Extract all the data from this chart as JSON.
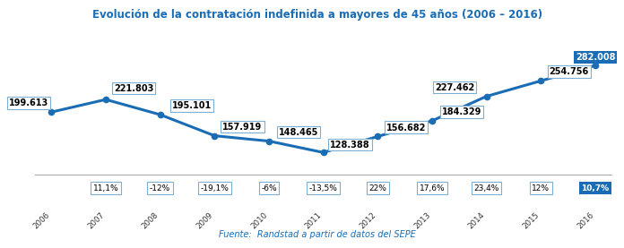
{
  "title": "Evolución de la contratación indefinida a mayores de 45 años (2006 – 2016)",
  "years": [
    2006,
    2007,
    2008,
    2009,
    2010,
    2011,
    2012,
    2013,
    2014,
    2015,
    2016
  ],
  "values": [
    199613,
    221803,
    195101,
    157919,
    148465,
    128388,
    156682,
    184329,
    227462,
    254756,
    282008
  ],
  "labels": [
    "199.613",
    "221.803",
    "195.101",
    "157.919",
    "148.465",
    "128.388",
    "156.682",
    "184.329",
    "227.462",
    "254.756",
    "282.008"
  ],
  "pct_labels": [
    "11,1%",
    "-12%",
    "-19,1%",
    "-6%",
    "-13,5%",
    "22%",
    "17,6%",
    "23,4%",
    "12%",
    "10,7%"
  ],
  "line_color": "#1A6DB5",
  "marker_color": "#1A6DB5",
  "title_color": "#1A6DB5",
  "source_text": "Fuente:  Randstad a partir de datos del SEPE",
  "source_color": "#1A6DB5",
  "background_color": "#FFFFFF",
  "last_pct_bg": "#1A6DB5",
  "last_pct_color": "#FFFFFF",
  "pct_box_color": "#FFFFFF",
  "pct_box_edge": "#7BAFD4",
  "value_box_edge": "#7BAFD4",
  "value_box_color": "#FFFFFF",
  "last_value_bg": "#1A6DB5",
  "last_value_color": "#FFFFFF",
  "separator_color": "#AAAAAA",
  "year_label_color": "#333333"
}
